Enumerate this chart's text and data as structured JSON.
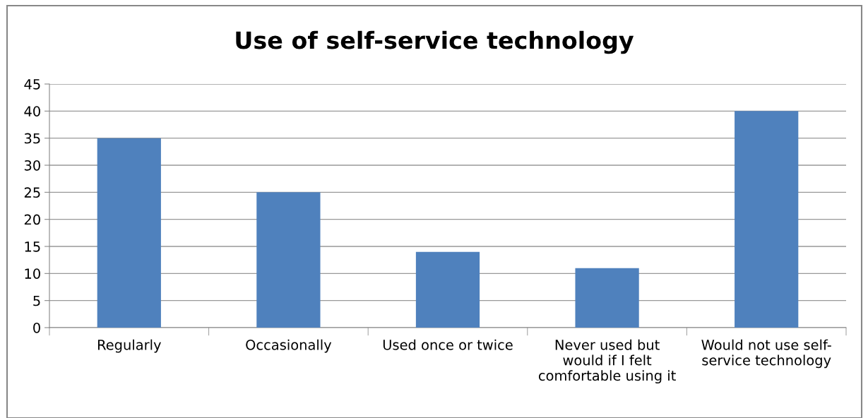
{
  "chart_data": {
    "type": "bar",
    "title": "Use of self-service technology",
    "categories": [
      "Regularly",
      "Occasionally",
      "Used once or twice",
      "Never used but\nwould if I felt\ncomfortable using it",
      "Would not use self-\nservice technology"
    ],
    "values": [
      35,
      25,
      14,
      11,
      40
    ],
    "color": "#4f81bd",
    "ylim": [
      0,
      45
    ],
    "yticks": [
      0,
      5,
      10,
      15,
      20,
      25,
      30,
      35,
      40,
      45
    ],
    "grid": "y",
    "legend": false
  }
}
